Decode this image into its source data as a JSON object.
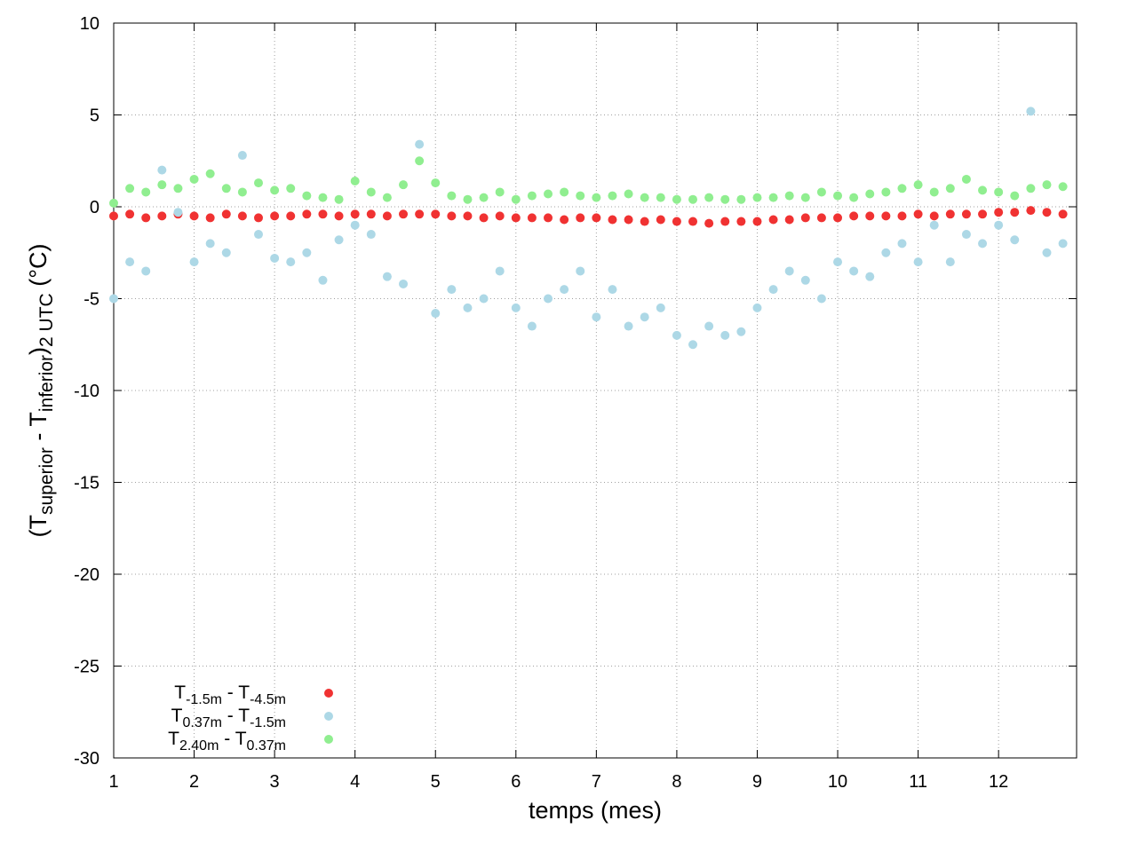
{
  "chart_data": {
    "type": "scatter",
    "xlabel": "temps (mes)",
    "ylabel": [
      "(T",
      "superior",
      " - T",
      "inferior",
      ")",
      "2 UTC",
      " (°C)"
    ],
    "xlim": [
      1,
      12.97
    ],
    "ylim": [
      -30,
      10
    ],
    "xticks": [
      1,
      2,
      3,
      4,
      5,
      6,
      7,
      8,
      9,
      10,
      11,
      12
    ],
    "yticks": [
      -30,
      -25,
      -20,
      -15,
      -10,
      -5,
      0,
      5,
      10
    ],
    "grid": true,
    "legend": "lower left",
    "x": [
      1,
      1.2,
      1.4,
      1.6,
      1.8,
      2,
      2.2,
      2.4,
      2.6,
      2.8,
      3,
      3.2,
      3.4,
      3.6,
      3.8,
      4,
      4.2,
      4.4,
      4.6,
      4.8,
      5,
      5.2,
      5.4,
      5.6,
      5.8,
      6,
      6.2,
      6.4,
      6.6,
      6.8,
      7,
      7.2,
      7.4,
      7.6,
      7.8,
      8,
      8.2,
      8.4,
      8.6,
      8.8,
      9,
      9.2,
      9.4,
      9.6,
      9.8,
      10,
      10.2,
      10.4,
      10.6,
      10.8,
      11,
      11.2,
      11.4,
      11.6,
      11.8,
      12,
      12.2,
      12.4,
      12.6,
      12.8
    ],
    "series": [
      {
        "name": [
          "T",
          "-1.5m",
          " - T",
          "-4.5m"
        ],
        "color": "#f03232",
        "values": [
          -0.5,
          -0.4,
          -0.6,
          -0.5,
          -0.4,
          -0.5,
          -0.6,
          -0.4,
          -0.5,
          -0.6,
          -0.5,
          -0.5,
          -0.4,
          -0.4,
          -0.5,
          -0.4,
          -0.4,
          -0.5,
          -0.4,
          -0.4,
          -0.4,
          -0.5,
          -0.5,
          -0.6,
          -0.5,
          -0.6,
          -0.6,
          -0.6,
          -0.7,
          -0.6,
          -0.6,
          -0.7,
          -0.7,
          -0.8,
          -0.7,
          -0.8,
          -0.8,
          -0.9,
          -0.8,
          -0.8,
          -0.8,
          -0.7,
          -0.7,
          -0.6,
          -0.6,
          -0.6,
          -0.5,
          -0.5,
          -0.5,
          -0.5,
          -0.4,
          -0.5,
          -0.4,
          -0.4,
          -0.4,
          -0.3,
          -0.3,
          -0.2,
          -0.3,
          -0.4
        ]
      },
      {
        "name": [
          "T",
          "0.37m",
          " - T",
          "-1.5m"
        ],
        "color": "#add8e6",
        "values": [
          -5.0,
          -3.0,
          -3.5,
          2.0,
          -0.3,
          -3.0,
          -2.0,
          -2.5,
          2.8,
          -1.5,
          -2.8,
          -3.0,
          -2.5,
          -4.0,
          -1.8,
          -1.0,
          -1.5,
          -3.8,
          -4.2,
          3.4,
          -5.8,
          -4.5,
          -5.5,
          -5.0,
          -3.5,
          -5.5,
          -6.5,
          -5.0,
          -4.5,
          -3.5,
          -6.0,
          -4.5,
          -6.5,
          -6.0,
          -5.5,
          -7.0,
          -7.5,
          -6.5,
          -7.0,
          -6.8,
          -5.5,
          -4.5,
          -3.5,
          -4.0,
          -5.0,
          -3.0,
          -3.5,
          -3.8,
          -2.5,
          -2.0,
          -3.0,
          -1.0,
          -3.0,
          -1.5,
          -2.0,
          -1.0,
          -1.8,
          5.2,
          -2.5,
          -2.0
        ]
      },
      {
        "name": [
          "T",
          "2.40m",
          " - T",
          "0.37m"
        ],
        "color": "#90ee90",
        "values": [
          0.2,
          1.0,
          0.8,
          1.2,
          1.0,
          1.5,
          1.8,
          1.0,
          0.8,
          1.3,
          0.9,
          1.0,
          0.6,
          0.5,
          0.4,
          1.4,
          0.8,
          0.5,
          1.2,
          2.5,
          1.3,
          0.6,
          0.4,
          0.5,
          0.8,
          0.4,
          0.6,
          0.7,
          0.8,
          0.6,
          0.5,
          0.6,
          0.7,
          0.5,
          0.5,
          0.4,
          0.4,
          0.5,
          0.4,
          0.4,
          0.5,
          0.5,
          0.6,
          0.5,
          0.8,
          0.6,
          0.5,
          0.7,
          0.8,
          1.0,
          1.2,
          0.8,
          1.0,
          1.5,
          0.9,
          0.8,
          0.6,
          1.0,
          1.2,
          1.1
        ]
      }
    ]
  }
}
